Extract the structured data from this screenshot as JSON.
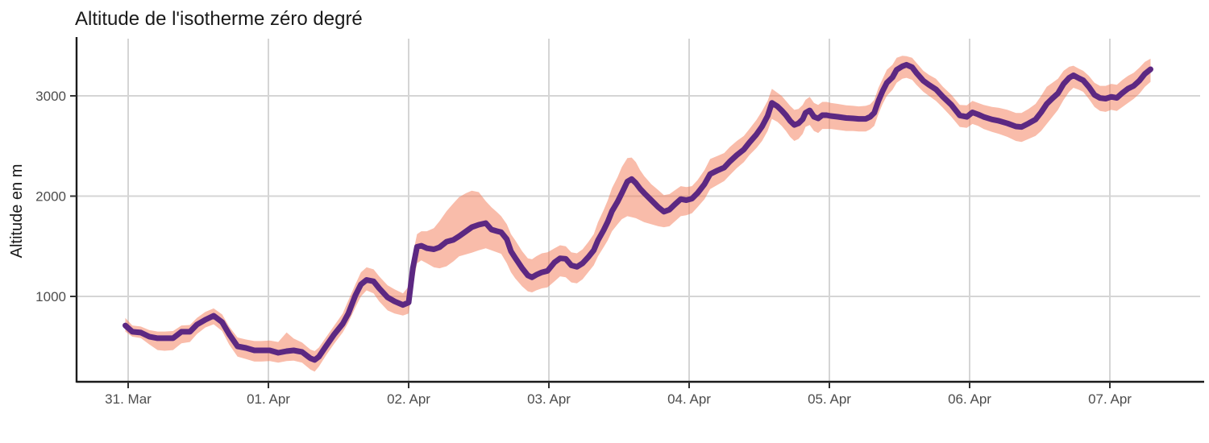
{
  "title": "Altitude de l'isotherme zéro degré",
  "y_axis": {
    "label": "Altitude en m",
    "ticks": [
      1000,
      2000,
      3000
    ]
  },
  "x_axis": {
    "ticks": [
      "31. Mar",
      "01. Apr",
      "02. Apr",
      "03. Apr",
      "04. Apr",
      "05. Apr",
      "06. Apr",
      "07. Apr"
    ]
  },
  "colors": {
    "line": "#5c2882",
    "ribbon": "rgba(244,122,86,0.5)",
    "grid": "#d5d5d5",
    "axis": "#1b1b1b",
    "tick_mark": "#333333",
    "tick_text": "#4d4d4d",
    "title_text": "#1a1a1a",
    "background": "#ffffff"
  },
  "chart_data": {
    "type": "line",
    "title": "Altitude de l'isotherme zéro degré",
    "xlabel": "",
    "ylabel": "Altitude en m",
    "x_unit": "days since 31 Mar 00:00",
    "y_unit": "m",
    "xlim": [
      -0.37,
      7.64
    ],
    "ylim": [
      150,
      3580
    ],
    "grid": "major-only",
    "legend": "none",
    "series": [
      {
        "name": "altitude isotherme 0°C",
        "style": "thick purple line with salmon uncertainty ribbon",
        "point_format": [
          "day",
          "altitude_m",
          "ribbon_low_m",
          "ribbon_high_m"
        ],
        "points": [
          [
            -0.02,
            710,
            650,
            785
          ],
          [
            0.03,
            647,
            598,
            710
          ],
          [
            0.09,
            639,
            585,
            700
          ],
          [
            0.15,
            599,
            522,
            665
          ],
          [
            0.21,
            583,
            465,
            650
          ],
          [
            0.26,
            583,
            458,
            650
          ],
          [
            0.32,
            583,
            465,
            655
          ],
          [
            0.38,
            647,
            532,
            710
          ],
          [
            0.44,
            647,
            545,
            715
          ],
          [
            0.49,
            719,
            625,
            785
          ],
          [
            0.55,
            767,
            690,
            845
          ],
          [
            0.61,
            807,
            722,
            880
          ],
          [
            0.67,
            743,
            655,
            820
          ],
          [
            0.72,
            623,
            520,
            700
          ],
          [
            0.78,
            502,
            400,
            590
          ],
          [
            0.84,
            486,
            375,
            570
          ],
          [
            0.9,
            462,
            350,
            555
          ],
          [
            0.95,
            462,
            350,
            555
          ],
          [
            1.01,
            462,
            355,
            560
          ],
          [
            1.07,
            438,
            340,
            545
          ],
          [
            1.13,
            454,
            355,
            640
          ],
          [
            1.18,
            462,
            360,
            580
          ],
          [
            1.24,
            446,
            340,
            540
          ],
          [
            1.3,
            382,
            270,
            470
          ],
          [
            1.33,
            366,
            250,
            455
          ],
          [
            1.36,
            398,
            300,
            490
          ],
          [
            1.41,
            502,
            410,
            590
          ],
          [
            1.47,
            623,
            530,
            710
          ],
          [
            1.53,
            727,
            640,
            830
          ],
          [
            1.57,
            830,
            740,
            960
          ],
          [
            1.62,
            1010,
            890,
            1120
          ],
          [
            1.66,
            1120,
            1000,
            1240
          ],
          [
            1.7,
            1165,
            1060,
            1290
          ],
          [
            1.75,
            1150,
            1030,
            1270
          ],
          [
            1.79,
            1080,
            950,
            1200
          ],
          [
            1.85,
            990,
            860,
            1110
          ],
          [
            1.9,
            950,
            830,
            1070
          ],
          [
            1.96,
            915,
            810,
            1030
          ],
          [
            2.0,
            940,
            830,
            1100
          ],
          [
            2.03,
            1280,
            1100,
            1420
          ],
          [
            2.06,
            1495,
            1330,
            1620
          ],
          [
            2.09,
            1505,
            1360,
            1650
          ],
          [
            2.13,
            1480,
            1330,
            1650
          ],
          [
            2.18,
            1470,
            1290,
            1680
          ],
          [
            2.22,
            1490,
            1280,
            1750
          ],
          [
            2.27,
            1545,
            1300,
            1850
          ],
          [
            2.32,
            1565,
            1350,
            1930
          ],
          [
            2.36,
            1600,
            1400,
            1990
          ],
          [
            2.41,
            1650,
            1420,
            2030
          ],
          [
            2.45,
            1690,
            1435,
            2055
          ],
          [
            2.5,
            1715,
            1460,
            2040
          ],
          [
            2.55,
            1731,
            1480,
            1950
          ],
          [
            2.59,
            1667,
            1460,
            1890
          ],
          [
            2.63,
            1651,
            1440,
            1840
          ],
          [
            2.66,
            1640,
            1425,
            1800
          ],
          [
            2.7,
            1570,
            1330,
            1720
          ],
          [
            2.73,
            1450,
            1240,
            1620
          ],
          [
            2.76,
            1385,
            1180,
            1560
          ],
          [
            2.81,
            1280,
            1100,
            1450
          ],
          [
            2.85,
            1210,
            1050,
            1380
          ],
          [
            2.88,
            1190,
            1040,
            1370
          ],
          [
            2.91,
            1215,
            1060,
            1400
          ],
          [
            2.95,
            1240,
            1080,
            1430
          ],
          [
            2.99,
            1255,
            1090,
            1440
          ],
          [
            3.04,
            1340,
            1150,
            1480
          ],
          [
            3.08,
            1380,
            1200,
            1510
          ],
          [
            3.12,
            1375,
            1190,
            1500
          ],
          [
            3.16,
            1310,
            1140,
            1440
          ],
          [
            3.2,
            1295,
            1130,
            1430
          ],
          [
            3.24,
            1330,
            1170,
            1470
          ],
          [
            3.28,
            1390,
            1240,
            1540
          ],
          [
            3.32,
            1460,
            1310,
            1620
          ],
          [
            3.35,
            1560,
            1400,
            1740
          ],
          [
            3.39,
            1660,
            1490,
            1860
          ],
          [
            3.42,
            1745,
            1560,
            1960
          ],
          [
            3.45,
            1850,
            1650,
            2080
          ],
          [
            3.49,
            1945,
            1720,
            2190
          ],
          [
            3.52,
            2030,
            1770,
            2290
          ],
          [
            3.56,
            2145,
            1800,
            2380
          ],
          [
            3.59,
            2170,
            1790,
            2385
          ],
          [
            3.62,
            2130,
            1780,
            2340
          ],
          [
            3.65,
            2075,
            1760,
            2260
          ],
          [
            3.68,
            2030,
            1740,
            2200
          ],
          [
            3.73,
            1960,
            1720,
            2120
          ],
          [
            3.78,
            1890,
            1700,
            2060
          ],
          [
            3.82,
            1845,
            1690,
            2010
          ],
          [
            3.86,
            1865,
            1700,
            2020
          ],
          [
            3.9,
            1920,
            1750,
            2060
          ],
          [
            3.94,
            1970,
            1800,
            2100
          ],
          [
            3.98,
            1960,
            1810,
            2090
          ],
          [
            4.02,
            1975,
            1830,
            2100
          ],
          [
            4.06,
            2030,
            1890,
            2160
          ],
          [
            4.11,
            2120,
            1970,
            2260
          ],
          [
            4.15,
            2220,
            2070,
            2370
          ],
          [
            4.2,
            2255,
            2110,
            2400
          ],
          [
            4.25,
            2285,
            2150,
            2430
          ],
          [
            4.29,
            2345,
            2210,
            2490
          ],
          [
            4.34,
            2410,
            2280,
            2550
          ],
          [
            4.39,
            2465,
            2340,
            2600
          ],
          [
            4.43,
            2535,
            2410,
            2670
          ],
          [
            4.48,
            2615,
            2480,
            2760
          ],
          [
            4.52,
            2695,
            2550,
            2850
          ],
          [
            4.56,
            2800,
            2650,
            2950
          ],
          [
            4.59,
            2930,
            2770,
            3070
          ],
          [
            4.63,
            2895,
            2740,
            3030
          ],
          [
            4.66,
            2855,
            2700,
            3000
          ],
          [
            4.69,
            2807,
            2650,
            2950
          ],
          [
            4.72,
            2750,
            2590,
            2900
          ],
          [
            4.75,
            2710,
            2550,
            2860
          ],
          [
            4.78,
            2726,
            2570,
            2870
          ],
          [
            4.81,
            2767,
            2620,
            2910
          ],
          [
            4.83,
            2831,
            2690,
            2960
          ],
          [
            4.86,
            2855,
            2710,
            2990
          ],
          [
            4.89,
            2791,
            2650,
            2930
          ],
          [
            4.92,
            2775,
            2630,
            2910
          ],
          [
            4.95,
            2807,
            2670,
            2940
          ],
          [
            4.98,
            2807,
            2670,
            2940
          ],
          [
            5.01,
            2799,
            2670,
            2930
          ],
          [
            5.06,
            2791,
            2660,
            2920
          ],
          [
            5.12,
            2779,
            2650,
            2905
          ],
          [
            5.17,
            2775,
            2650,
            2900
          ],
          [
            5.21,
            2770,
            2645,
            2895
          ],
          [
            5.26,
            2770,
            2645,
            2900
          ],
          [
            5.29,
            2790,
            2665,
            2915
          ],
          [
            5.32,
            2831,
            2700,
            2960
          ],
          [
            5.35,
            2951,
            2820,
            3080
          ],
          [
            5.38,
            3048,
            2920,
            3170
          ],
          [
            5.41,
            3130,
            3000,
            3260
          ],
          [
            5.45,
            3185,
            3060,
            3310
          ],
          [
            5.48,
            3260,
            3130,
            3380
          ],
          [
            5.52,
            3295,
            3170,
            3400
          ],
          [
            5.55,
            3310,
            3180,
            3395
          ],
          [
            5.59,
            3285,
            3160,
            3380
          ],
          [
            5.62,
            3230,
            3110,
            3330
          ],
          [
            5.67,
            3150,
            3040,
            3250
          ],
          [
            5.71,
            3110,
            3000,
            3210
          ],
          [
            5.76,
            3065,
            2950,
            3170
          ],
          [
            5.81,
            2990,
            2880,
            3090
          ],
          [
            5.87,
            2910,
            2790,
            3010
          ],
          [
            5.93,
            2805,
            2690,
            2910
          ],
          [
            5.98,
            2790,
            2680,
            2905
          ],
          [
            6.02,
            2835,
            2720,
            2950
          ],
          [
            6.06,
            2815,
            2700,
            2930
          ],
          [
            6.1,
            2790,
            2670,
            2910
          ],
          [
            6.16,
            2765,
            2640,
            2890
          ],
          [
            6.21,
            2750,
            2620,
            2880
          ],
          [
            6.27,
            2725,
            2590,
            2860
          ],
          [
            6.33,
            2695,
            2550,
            2830
          ],
          [
            6.37,
            2690,
            2540,
            2830
          ],
          [
            6.42,
            2725,
            2570,
            2870
          ],
          [
            6.47,
            2765,
            2600,
            2920
          ],
          [
            6.51,
            2835,
            2650,
            3000
          ],
          [
            6.55,
            2920,
            2720,
            3090
          ],
          [
            6.59,
            2975,
            2790,
            3130
          ],
          [
            6.63,
            3025,
            2860,
            3170
          ],
          [
            6.67,
            3120,
            2960,
            3250
          ],
          [
            6.71,
            3180,
            3040,
            3290
          ],
          [
            6.74,
            3205,
            3080,
            3300
          ],
          [
            6.78,
            3175,
            3060,
            3270
          ],
          [
            6.81,
            3155,
            3040,
            3250
          ],
          [
            6.85,
            3090,
            2970,
            3200
          ],
          [
            6.89,
            3010,
            2890,
            3130
          ],
          [
            6.93,
            2978,
            2850,
            3100
          ],
          [
            6.97,
            2972,
            2840,
            3100
          ],
          [
            7.01,
            2990,
            2860,
            3120
          ],
          [
            7.05,
            2980,
            2850,
            3110
          ],
          [
            7.09,
            3030,
            2890,
            3160
          ],
          [
            7.13,
            3072,
            2930,
            3200
          ],
          [
            7.17,
            3100,
            2970,
            3230
          ],
          [
            7.21,
            3150,
            3020,
            3280
          ],
          [
            7.25,
            3220,
            3090,
            3340
          ],
          [
            7.29,
            3265,
            3140,
            3370
          ]
        ]
      }
    ]
  }
}
